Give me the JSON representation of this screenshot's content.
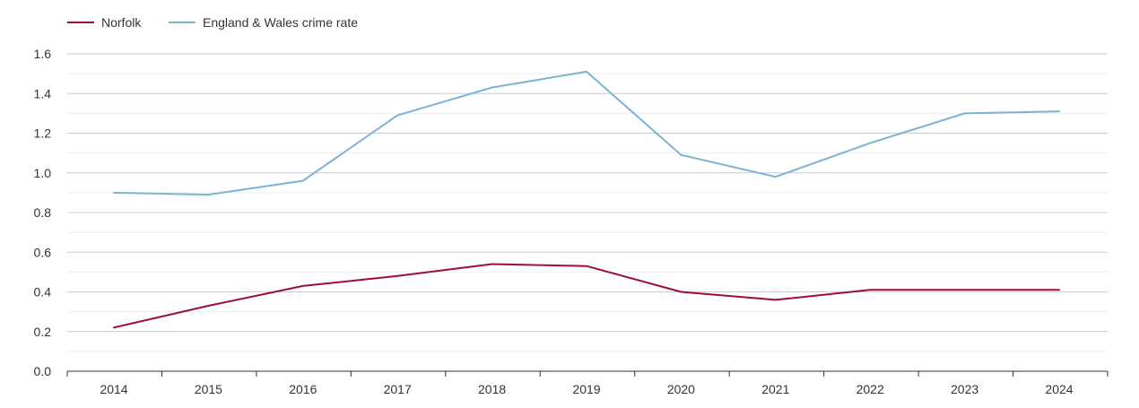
{
  "chart_data": {
    "type": "line",
    "title": "",
    "xlabel": "",
    "ylabel": "",
    "categories": [
      "2014",
      "2015",
      "2016",
      "2017",
      "2018",
      "2019",
      "2020",
      "2021",
      "2022",
      "2023",
      "2024"
    ],
    "ylim": [
      0,
      1.6
    ],
    "yticks": [
      "0.0",
      "0.2",
      "0.4",
      "0.6",
      "0.8",
      "1.0",
      "1.2",
      "1.4",
      "1.6"
    ],
    "grid": true,
    "legend_position": "top-left",
    "series": [
      {
        "name": "Norfolk",
        "color": "#9b0f3a",
        "values": [
          0.22,
          0.33,
          0.43,
          0.48,
          0.54,
          0.53,
          0.4,
          0.36,
          0.41,
          0.41,
          0.41
        ]
      },
      {
        "name": "England & Wales crime rate",
        "color": "#7ab3d4",
        "values": [
          0.9,
          0.89,
          0.96,
          1.29,
          1.43,
          1.51,
          1.09,
          0.98,
          1.15,
          1.3,
          1.31
        ]
      }
    ]
  }
}
